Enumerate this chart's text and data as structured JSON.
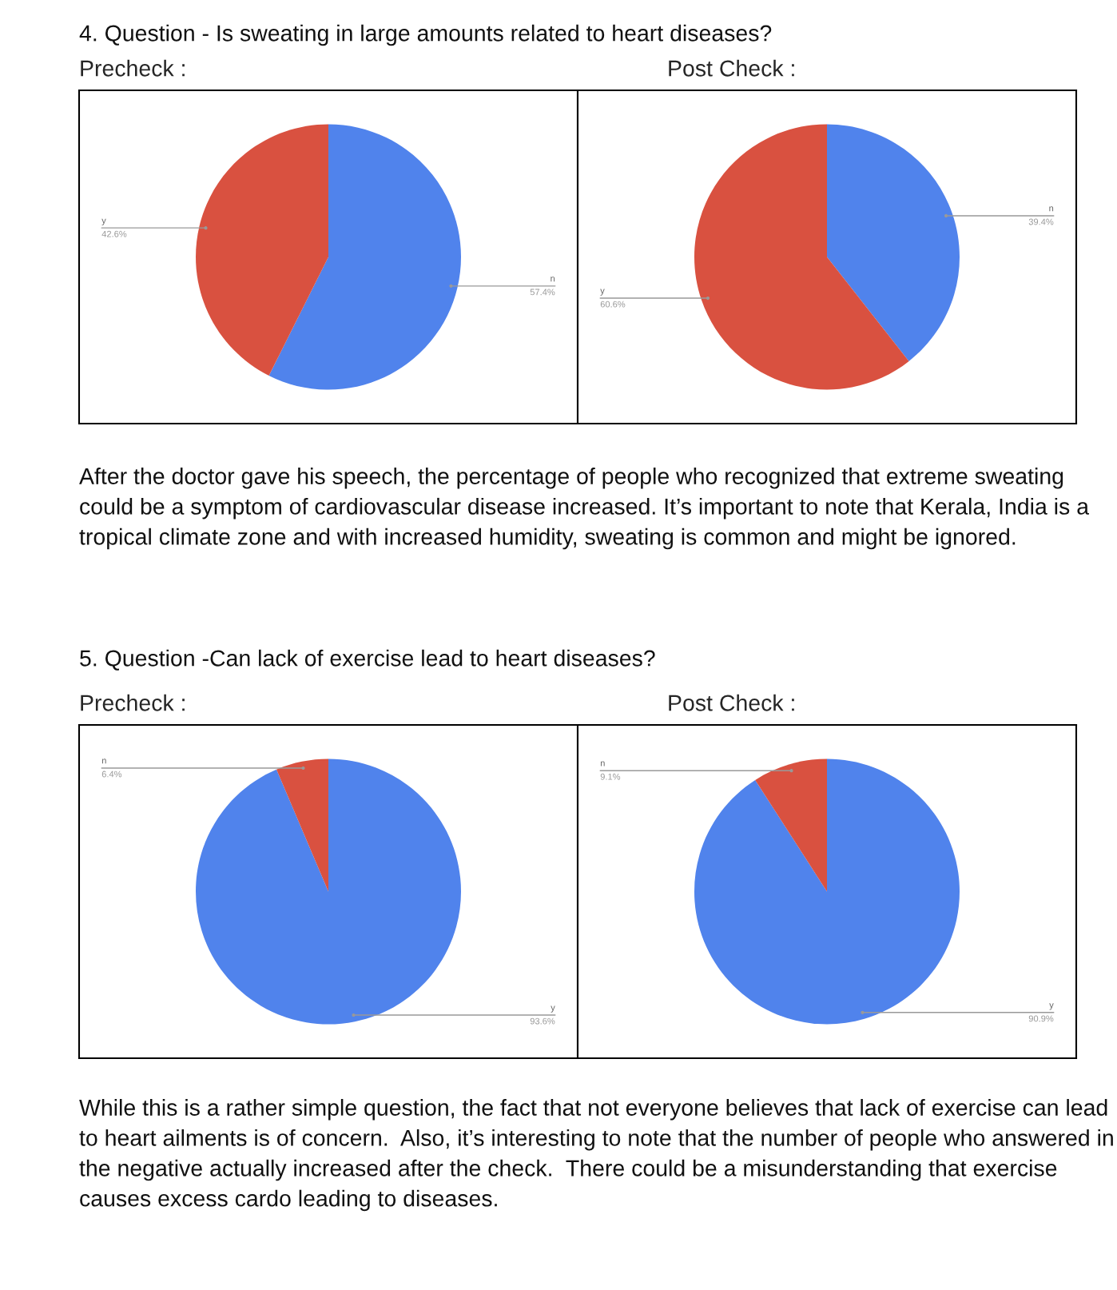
{
  "chart_data": [
    {
      "type": "other",
      "title": "4. Question - Is sweating in large amounts related to heart diseases?"
    },
    {
      "type": "pie",
      "title": "Precheck :",
      "categories": [
        "n",
        "y"
      ],
      "values": [
        57.4,
        42.6
      ],
      "colors": [
        "#5083ec",
        "#d95140"
      ],
      "value_labels": [
        "57.4%",
        "42.6%"
      ]
    },
    {
      "type": "pie",
      "title": "Post Check :",
      "categories": [
        "n",
        "y"
      ],
      "values": [
        39.4,
        60.6
      ],
      "colors": [
        "#5083ec",
        "#d95140"
      ],
      "value_labels": [
        "39.4%",
        "60.6%"
      ]
    },
    {
      "type": "other",
      "annotations": [
        "After the doctor gave his speech, the percentage of people who recognized that extreme sweating could be a symptom of cardiovascular disease increased. It’s important to note that Kerala, India is a tropical climate zone and with increased humidity, sweating is common and might be ignored.",
        "5. Question -Can lack of exercise lead to heart diseases?"
      ]
    },
    {
      "type": "pie",
      "title": "Precheck :",
      "categories": [
        "y",
        "n"
      ],
      "values": [
        93.6,
        6.4
      ],
      "colors": [
        "#5083ec",
        "#d95140"
      ],
      "value_labels": [
        "93.6%",
        "6.4%"
      ]
    },
    {
      "type": "pie",
      "title": "Post Check :",
      "categories": [
        "y",
        "n"
      ],
      "values": [
        90.9,
        9.1
      ],
      "colors": [
        "#5083ec",
        "#d95140"
      ],
      "value_labels": [
        "90.9%",
        "9.1%"
      ]
    },
    {
      "type": "other",
      "annotations": [
        "While this is a rather simple question, the fact that not everyone believes that lack of exercise can lead to heart ailments is of concern.  Also, it’s interesting to note that the number of people who answered in the negative actually increased after the check.  There could be a misunderstanding that exercise causes excess cardo leading to diseases."
      ]
    }
  ]
}
